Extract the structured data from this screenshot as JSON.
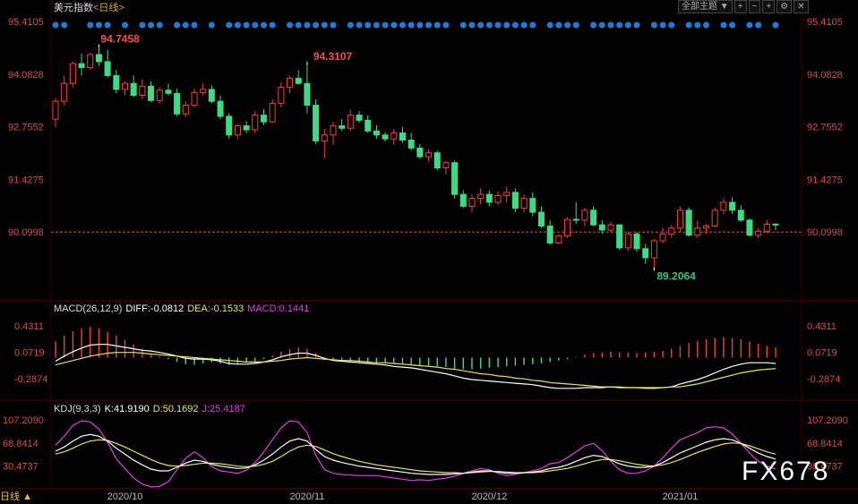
{
  "header": {
    "title": "美元指数",
    "period_link": "<日线>",
    "toolbar": {
      "theme_label": "全部主题",
      "dropdown": "▼"
    }
  },
  "main_axis": {
    "ticks": [
      "95.4105",
      "94.0828",
      "92.7552",
      "91.4275",
      "90.0998"
    ],
    "tick_values": [
      95.4105,
      94.0828,
      92.7552,
      91.4275,
      90.0998
    ],
    "ylim": [
      88.5,
      95.55
    ],
    "reference_line": 90.0998,
    "ref_color": "#e0474c"
  },
  "annotations": {
    "high_label": "94.7458",
    "high2_label": "94.3107",
    "low_label": "89.2064",
    "high_color": "#ff4b4b",
    "low_color": "#39c07b"
  },
  "macd": {
    "label": "MACD(26,12,9)",
    "diff": "DIFF:-0.0812",
    "dea": "DEA:-0.1533",
    "macd": "MACD:0.1441",
    "ticks": [
      "0.4311",
      "0.0719",
      "-0.2874"
    ],
    "tick_values": [
      0.4311,
      0.0719,
      -0.2874
    ],
    "ylim": [
      -0.52,
      0.58
    ]
  },
  "kdj": {
    "label": "KDJ(9,3,3)",
    "k": "K:41.9190",
    "d": "D:50.1692",
    "j": "J:25.4187",
    "ticks": [
      "107.2090",
      "68.8414",
      "30.4737"
    ],
    "tick_values": [
      107.209,
      68.8414,
      30.4737
    ],
    "ylim": [
      -5,
      118
    ]
  },
  "x_axis": {
    "labels": [
      "2020/10",
      "2020/11",
      "2020/12",
      "2021/01"
    ],
    "label_index": [
      8,
      29,
      50,
      72
    ]
  },
  "bottom": {
    "period": "日线",
    "arrow": "▲"
  },
  "watermark": "FX678",
  "colors": {
    "up": "#ff3a3a",
    "down": "#3ddc84",
    "dot": "#1e7bd6",
    "diff": "#ffffff",
    "dea": "#e8e36a",
    "j": "#e040e0"
  },
  "chart_data": {
    "type": "candlestick",
    "ohlc": [
      [
        92.95,
        93.48,
        92.75,
        93.4
      ],
      [
        93.4,
        94.05,
        93.3,
        93.85
      ],
      [
        93.85,
        94.4,
        93.75,
        94.35
      ],
      [
        94.35,
        94.6,
        94.05,
        94.25
      ],
      [
        94.25,
        94.62,
        94.2,
        94.58
      ],
      [
        94.58,
        94.75,
        94.3,
        94.4
      ],
      [
        94.4,
        94.7,
        94.0,
        94.05
      ],
      [
        94.05,
        94.2,
        93.6,
        93.7
      ],
      [
        93.7,
        93.9,
        93.55,
        93.85
      ],
      [
        93.85,
        94.05,
        93.5,
        93.55
      ],
      [
        93.55,
        93.95,
        93.45,
        93.78
      ],
      [
        93.78,
        93.9,
        93.38,
        93.42
      ],
      [
        93.42,
        93.75,
        93.35,
        93.68
      ],
      [
        93.68,
        93.85,
        93.55,
        93.6
      ],
      [
        93.6,
        93.72,
        93.02,
        93.08
      ],
      [
        93.08,
        93.4,
        93.0,
        93.3
      ],
      [
        93.3,
        93.72,
        93.25,
        93.62
      ],
      [
        93.62,
        93.85,
        93.55,
        93.7
      ],
      [
        93.7,
        93.8,
        93.35,
        93.4
      ],
      [
        93.4,
        93.55,
        92.95,
        93.02
      ],
      [
        93.02,
        93.1,
        92.45,
        92.55
      ],
      [
        92.55,
        92.82,
        92.45,
        92.78
      ],
      [
        92.78,
        92.9,
        92.6,
        92.68
      ],
      [
        92.68,
        93.15,
        92.6,
        93.05
      ],
      [
        93.05,
        93.2,
        92.8,
        92.88
      ],
      [
        92.88,
        93.45,
        92.85,
        93.35
      ],
      [
        93.35,
        93.88,
        93.25,
        93.75
      ],
      [
        93.75,
        94.05,
        93.6,
        93.98
      ],
      [
        93.98,
        94.18,
        93.82,
        93.85
      ],
      [
        93.85,
        94.31,
        93.1,
        93.3
      ],
      [
        93.3,
        93.45,
        92.32,
        92.4
      ],
      [
        92.4,
        92.7,
        91.95,
        92.55
      ],
      [
        92.55,
        92.88,
        92.3,
        92.78
      ],
      [
        92.78,
        92.95,
        92.65,
        92.72
      ],
      [
        92.72,
        93.18,
        92.65,
        93.05
      ],
      [
        93.05,
        93.15,
        92.85,
        92.92
      ],
      [
        92.92,
        93.05,
        92.6,
        92.65
      ],
      [
        92.65,
        92.8,
        92.45,
        92.55
      ],
      [
        92.55,
        92.62,
        92.38,
        92.45
      ],
      [
        92.45,
        92.7,
        92.3,
        92.6
      ],
      [
        92.6,
        92.75,
        92.35,
        92.42
      ],
      [
        92.42,
        92.6,
        92.15,
        92.22
      ],
      [
        92.22,
        92.32,
        91.95,
        92.0
      ],
      [
        92.0,
        92.18,
        91.88,
        92.1
      ],
      [
        92.1,
        92.15,
        91.65,
        91.72
      ],
      [
        91.72,
        91.9,
        91.55,
        91.85
      ],
      [
        91.85,
        91.9,
        90.95,
        91.05
      ],
      [
        91.05,
        91.15,
        90.7,
        90.75
      ],
      [
        90.75,
        91.05,
        90.6,
        90.95
      ],
      [
        90.95,
        91.2,
        90.8,
        91.05
      ],
      [
        91.05,
        91.15,
        90.75,
        90.85
      ],
      [
        90.85,
        91.12,
        90.78,
        91.02
      ],
      [
        91.02,
        91.25,
        90.85,
        91.1
      ],
      [
        91.1,
        91.2,
        90.6,
        90.7
      ],
      [
        90.7,
        91.05,
        90.6,
        90.95
      ],
      [
        90.95,
        91.1,
        90.5,
        90.6
      ],
      [
        90.6,
        90.75,
        90.2,
        90.25
      ],
      [
        90.25,
        90.4,
        89.78,
        89.82
      ],
      [
        89.82,
        90.05,
        89.8,
        90.0
      ],
      [
        90.0,
        90.48,
        89.95,
        90.42
      ],
      [
        90.42,
        90.85,
        90.3,
        90.4
      ],
      [
        90.4,
        90.72,
        90.25,
        90.65
      ],
      [
        90.65,
        90.75,
        90.25,
        90.28
      ],
      [
        90.28,
        90.4,
        90.05,
        90.15
      ],
      [
        90.15,
        90.35,
        90.1,
        90.28
      ],
      [
        90.28,
        90.3,
        89.65,
        89.7
      ],
      [
        89.7,
        90.1,
        89.62,
        90.05
      ],
      [
        90.05,
        90.1,
        89.6,
        89.68
      ],
      [
        89.68,
        89.8,
        89.3,
        89.45
      ],
      [
        89.45,
        89.92,
        89.21,
        89.88
      ],
      [
        89.88,
        90.2,
        89.82,
        90.05
      ],
      [
        90.05,
        90.28,
        89.95,
        90.2
      ],
      [
        90.2,
        90.75,
        90.1,
        90.65
      ],
      [
        90.65,
        90.72,
        89.98,
        90.02
      ],
      [
        90.02,
        90.38,
        89.95,
        90.2
      ],
      [
        90.2,
        90.3,
        90.05,
        90.25
      ],
      [
        90.25,
        90.72,
        90.22,
        90.65
      ],
      [
        90.65,
        90.95,
        90.55,
        90.85
      ],
      [
        90.85,
        90.98,
        90.55,
        90.65
      ],
      [
        90.65,
        90.78,
        90.35,
        90.4
      ],
      [
        90.4,
        90.45,
        89.98,
        90.02
      ],
      [
        90.02,
        90.2,
        89.95,
        90.12
      ],
      [
        90.12,
        90.4,
        90.08,
        90.3
      ],
      [
        90.3,
        90.32,
        90.15,
        90.28
      ]
    ],
    "macd_hist": [
      0.22,
      0.3,
      0.36,
      0.4,
      0.42,
      0.4,
      0.35,
      0.3,
      0.24,
      0.18,
      0.12,
      0.06,
      0.02,
      -0.02,
      -0.06,
      -0.09,
      -0.1,
      -0.08,
      -0.06,
      -0.08,
      -0.1,
      -0.09,
      -0.07,
      -0.05,
      -0.02,
      0.03,
      0.08,
      0.12,
      0.14,
      0.12,
      0.06,
      0.01,
      -0.02,
      -0.04,
      -0.05,
      -0.06,
      -0.07,
      -0.08,
      -0.08,
      -0.09,
      -0.09,
      -0.1,
      -0.11,
      -0.12,
      -0.12,
      -0.13,
      -0.15,
      -0.16,
      -0.16,
      -0.15,
      -0.14,
      -0.13,
      -0.12,
      -0.11,
      -0.1,
      -0.09,
      -0.08,
      -0.06,
      -0.04,
      -0.02,
      0.01,
      0.04,
      0.06,
      0.07,
      0.08,
      0.07,
      0.07,
      0.06,
      0.07,
      0.08,
      0.09,
      0.12,
      0.16,
      0.2,
      0.23,
      0.25,
      0.27,
      0.28,
      0.27,
      0.25,
      0.22,
      0.19,
      0.16,
      0.14
    ],
    "macd_diff": [
      -0.05,
      0.02,
      0.08,
      0.13,
      0.17,
      0.18,
      0.18,
      0.16,
      0.14,
      0.12,
      0.1,
      0.09,
      0.07,
      0.05,
      0.02,
      -0.01,
      -0.02,
      -0.02,
      -0.03,
      -0.05,
      -0.08,
      -0.09,
      -0.09,
      -0.08,
      -0.06,
      -0.03,
      0.01,
      0.04,
      0.06,
      0.06,
      0.03,
      -0.01,
      -0.04,
      -0.05,
      -0.06,
      -0.07,
      -0.08,
      -0.09,
      -0.1,
      -0.12,
      -0.13,
      -0.14,
      -0.16,
      -0.18,
      -0.2,
      -0.22,
      -0.25,
      -0.28,
      -0.3,
      -0.31,
      -0.32,
      -0.33,
      -0.34,
      -0.35,
      -0.36,
      -0.37,
      -0.39,
      -0.41,
      -0.42,
      -0.42,
      -0.42,
      -0.41,
      -0.41,
      -0.41,
      -0.4,
      -0.41,
      -0.41,
      -0.41,
      -0.42,
      -0.42,
      -0.41,
      -0.4,
      -0.36,
      -0.33,
      -0.3,
      -0.26,
      -0.21,
      -0.16,
      -0.12,
      -0.09,
      -0.07,
      -0.07,
      -0.07,
      -0.08
    ],
    "macd_dea": [
      -0.1,
      -0.07,
      -0.04,
      -0.01,
      0.02,
      0.04,
      0.06,
      0.07,
      0.07,
      0.07,
      0.06,
      0.05,
      0.04,
      0.03,
      0.02,
      0.01,
      0.0,
      -0.01,
      -0.02,
      -0.03,
      -0.04,
      -0.05,
      -0.06,
      -0.06,
      -0.06,
      -0.05,
      -0.04,
      -0.02,
      -0.01,
      0.0,
      -0.01,
      -0.02,
      -0.03,
      -0.04,
      -0.04,
      -0.05,
      -0.06,
      -0.07,
      -0.07,
      -0.08,
      -0.09,
      -0.1,
      -0.11,
      -0.12,
      -0.13,
      -0.15,
      -0.16,
      -0.18,
      -0.2,
      -0.22,
      -0.23,
      -0.25,
      -0.26,
      -0.28,
      -0.29,
      -0.31,
      -0.32,
      -0.34,
      -0.35,
      -0.36,
      -0.37,
      -0.38,
      -0.39,
      -0.4,
      -0.4,
      -0.4,
      -0.41,
      -0.41,
      -0.41,
      -0.41,
      -0.41,
      -0.4,
      -0.4,
      -0.38,
      -0.36,
      -0.33,
      -0.3,
      -0.27,
      -0.24,
      -0.21,
      -0.19,
      -0.17,
      -0.16,
      -0.15
    ],
    "kdj_k": [
      55,
      62,
      72,
      80,
      83,
      80,
      72,
      60,
      50,
      40,
      32,
      25,
      22,
      22,
      28,
      35,
      40,
      38,
      33,
      30,
      28,
      26,
      27,
      32,
      40,
      50,
      62,
      72,
      76,
      72,
      58,
      46,
      40,
      36,
      33,
      30,
      28,
      26,
      24,
      22,
      20,
      18,
      17,
      16,
      16,
      16,
      17,
      18,
      20,
      22,
      22,
      20,
      18,
      18,
      19,
      20,
      22,
      26,
      28,
      32,
      38,
      44,
      48,
      46,
      40,
      34,
      30,
      28,
      28,
      30,
      36,
      44,
      52,
      58,
      64,
      70,
      74,
      76,
      74,
      68,
      60,
      52,
      46,
      42
    ],
    "kdj_d": [
      50,
      54,
      60,
      67,
      72,
      74,
      73,
      68,
      62,
      55,
      48,
      41,
      35,
      31,
      30,
      31,
      33,
      35,
      35,
      34,
      32,
      30,
      29,
      30,
      33,
      38,
      46,
      55,
      62,
      65,
      63,
      57,
      51,
      46,
      42,
      38,
      35,
      32,
      30,
      28,
      26,
      24,
      22,
      21,
      20,
      19,
      19,
      18,
      19,
      20,
      21,
      21,
      20,
      19,
      19,
      19,
      20,
      22,
      24,
      26,
      30,
      34,
      38,
      41,
      41,
      39,
      36,
      33,
      31,
      30,
      32,
      36,
      41,
      47,
      53,
      58,
      63,
      67,
      69,
      68,
      64,
      59,
      54,
      50
    ],
    "kdj_j": [
      65,
      80,
      98,
      106,
      104,
      92,
      70,
      42,
      26,
      10,
      0,
      -5,
      -4,
      4,
      24,
      43,
      54,
      44,
      29,
      22,
      20,
      18,
      23,
      36,
      54,
      74,
      94,
      106,
      104,
      86,
      48,
      24,
      18,
      16,
      15,
      14,
      14,
      14,
      12,
      10,
      8,
      6,
      7,
      6,
      8,
      10,
      13,
      18,
      22,
      26,
      24,
      18,
      14,
      16,
      19,
      22,
      26,
      34,
      36,
      44,
      54,
      64,
      68,
      56,
      38,
      24,
      18,
      18,
      22,
      30,
      44,
      60,
      74,
      80,
      86,
      94,
      96,
      94,
      84,
      68,
      52,
      38,
      30,
      25
    ]
  }
}
